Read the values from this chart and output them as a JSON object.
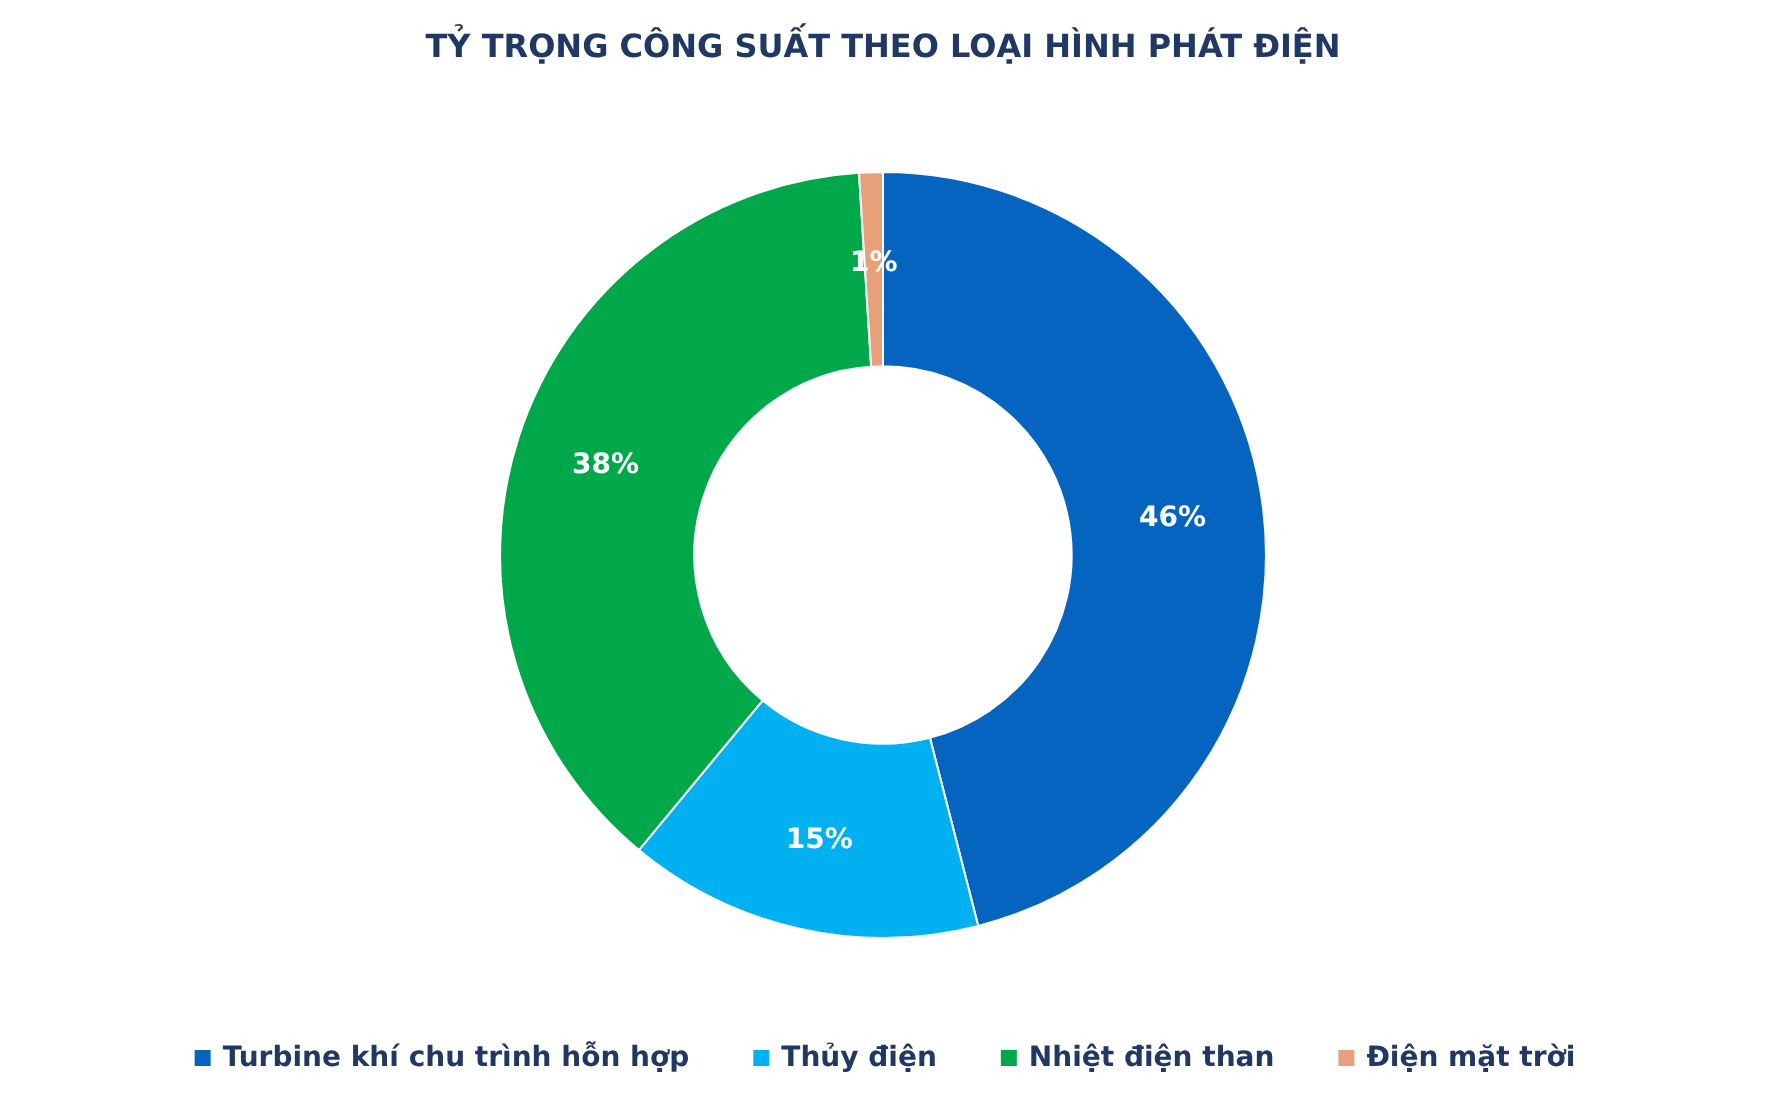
{
  "chart_data": {
    "type": "donut",
    "title": "TỶ TRỌNG CÔNG SUẤT THEO LOẠI HÌNH PHÁT ĐIỆN",
    "categories": [
      "Turbine khí chu trình hỗn hợp",
      "Thủy điện",
      "Nhiệt điện than",
      "Điện mặt trời"
    ],
    "values": [
      46,
      15,
      38,
      1
    ],
    "colors": [
      "#0564bf",
      "#00b0f0",
      "#00a84a",
      "#e8a07a"
    ],
    "value_labels": [
      "46%",
      "15%",
      "38%",
      "1%"
    ],
    "legend": "bottom"
  }
}
